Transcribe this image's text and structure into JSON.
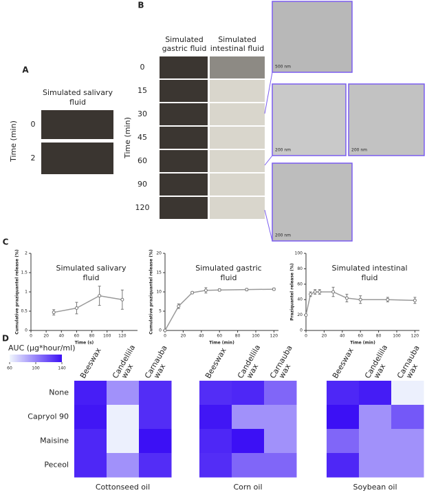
{
  "panel_labels": [
    "A",
    "B",
    "C",
    "D"
  ],
  "panel_a": {
    "title": [
      "Simulated salivary",
      "fluid"
    ],
    "times": [
      "0",
      "2"
    ],
    "axis_label": "Time (min)"
  },
  "panel_b": {
    "columns": [
      [
        "Simulated",
        "gastric fluid"
      ],
      [
        "Simulated",
        "intestinal fluid"
      ]
    ],
    "times": [
      "0",
      "15",
      "30",
      "45",
      "60",
      "90",
      "120"
    ],
    "axis_label": "Time (min)",
    "scale_bars": [
      "500 nm",
      "200 nm",
      "200 nm",
      "200 nm"
    ]
  },
  "colorbar": {
    "label": "AUC (µg*hour/ml)",
    "range": [
      60,
      140
    ],
    "ticks": [
      60,
      100,
      140
    ],
    "colors": [
      "#f0f6fd",
      "#3c10f5"
    ]
  },
  "chart_data": [
    {
      "type": "line",
      "title": [
        "Simulated salivary",
        "fluid"
      ],
      "x_label": "Time (s)",
      "y_label": "Cumulative praziquantel release (%)",
      "x": [
        30,
        60,
        90,
        120
      ],
      "values": [
        0.47,
        0.58,
        0.9,
        0.8
      ],
      "errors": [
        0.07,
        0.15,
        0.25,
        0.25
      ],
      "color": "#999999",
      "xlim": [
        0,
        140
      ],
      "xticks": [
        0,
        20,
        40,
        60,
        80,
        100,
        120
      ],
      "ylim": [
        0,
        2
      ],
      "yticks": [
        0,
        0.5,
        1,
        1.5,
        2
      ]
    },
    {
      "type": "line",
      "title": [
        "Simulated gastric",
        "fluid"
      ],
      "x_label": "Time (min)",
      "y_label": "Cumulative praziquantel release (%)",
      "x": [
        0,
        15,
        30,
        45,
        60,
        90,
        120
      ],
      "values": [
        0,
        6.3,
        9.8,
        10.4,
        10.5,
        10.6,
        10.7
      ],
      "errors": [
        0,
        0.6,
        0.3,
        0.7,
        0.3,
        0.3,
        0.3
      ],
      "color": "#999999",
      "xlim": [
        0,
        125
      ],
      "xticks": [
        0,
        20,
        40,
        60,
        80,
        100,
        120
      ],
      "ylim": [
        0,
        20
      ],
      "yticks": [
        0,
        5,
        10,
        15,
        20
      ]
    },
    {
      "type": "line",
      "title": [
        "Simulated intestinal",
        "fluid"
      ],
      "x_label": "Time (min)",
      "y_label": "Praziquantel release (%)",
      "x": [
        0,
        5,
        10,
        15,
        30,
        45,
        60,
        90,
        120
      ],
      "values": [
        20,
        47,
        50,
        50,
        50,
        42,
        40,
        40,
        39
      ],
      "errors": [
        0,
        3,
        3,
        3,
        6,
        5,
        5,
        3,
        4
      ],
      "color": "#999999",
      "xlim": [
        0,
        125
      ],
      "xticks": [
        0,
        20,
        40,
        60,
        80,
        100,
        120
      ],
      "ylim": [
        0,
        100
      ],
      "yticks": [
        0,
        20,
        40,
        60,
        80,
        100
      ]
    },
    {
      "type": "heatmap",
      "title": "Cottonseed oil",
      "rows": [
        "None",
        "Capryol 90",
        "Maisine",
        "Peceol"
      ],
      "columns": [
        [
          "Beeswax"
        ],
        [
          "Candellila",
          "wax"
        ],
        [
          "Carnauba",
          "wax"
        ]
      ],
      "values": [
        [
          135,
          95,
          130
        ],
        [
          138,
          62,
          130
        ],
        [
          132,
          62,
          140
        ],
        [
          132,
          95,
          130
        ]
      ]
    },
    {
      "type": "heatmap",
      "title": "Corn oil",
      "columns": [
        [
          "Beeswax"
        ],
        [
          "Candellila",
          "wax"
        ],
        [
          "Carnauba",
          "wax"
        ]
      ],
      "values": [
        [
          130,
          132,
          110
        ],
        [
          138,
          95,
          95
        ],
        [
          132,
          140,
          95
        ],
        [
          130,
          110,
          110
        ]
      ]
    },
    {
      "type": "heatmap",
      "title": "Soybean oil",
      "columns": [
        [
          "Beeswax"
        ],
        [
          "Candellila",
          "wax"
        ],
        [
          "Carnauba",
          "wax"
        ]
      ],
      "values": [
        [
          132,
          136,
          62
        ],
        [
          140,
          95,
          115
        ],
        [
          110,
          95,
          95
        ],
        [
          132,
          95,
          95
        ]
      ]
    }
  ]
}
